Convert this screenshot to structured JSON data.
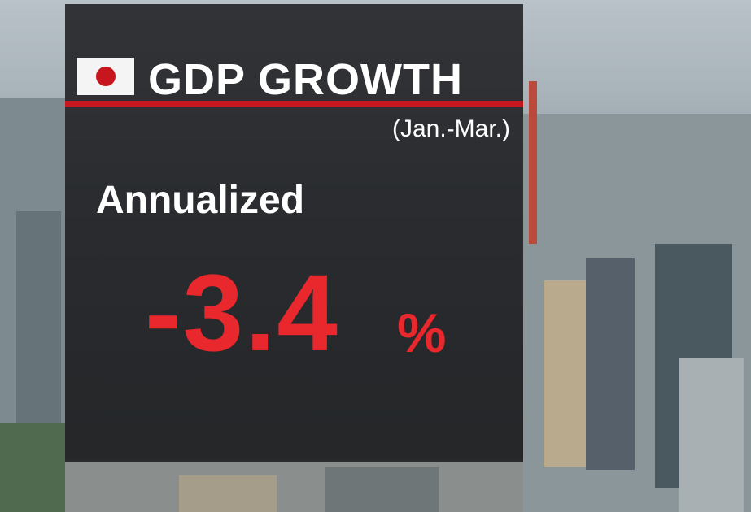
{
  "graphic": {
    "title": "GDP GROWTH",
    "period": "(Jan.-Mar.)",
    "label": "Annualized",
    "value": "-3.4",
    "unit": "%"
  }
}
